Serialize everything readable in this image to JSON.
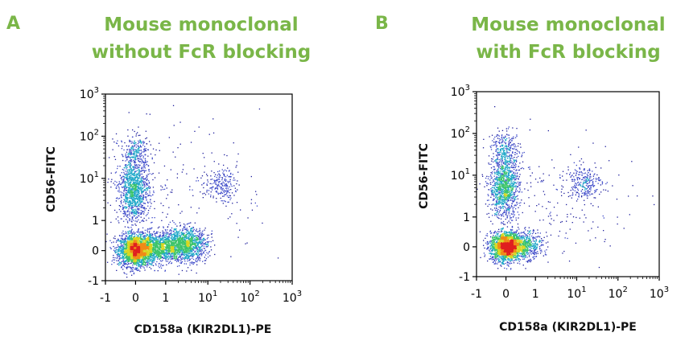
{
  "chart_data": [
    {
      "type": "scatter",
      "panel_letter": "A",
      "title_lines": [
        "Mouse monoclonal",
        "without FcR blocking"
      ],
      "xlabel": "CD158a (KIR2DL1)-PE",
      "ylabel": "CD56-FITC",
      "x_ticks": [
        "-1",
        "0",
        "1",
        "10",
        "10",
        "10"
      ],
      "x_tick_exps": [
        "",
        "",
        "",
        "1",
        "2",
        "3"
      ],
      "y_ticks": [
        "-1",
        "0",
        "1",
        "10",
        "10",
        "10"
      ],
      "y_tick_exps": [
        "",
        "",
        "",
        "1",
        "2",
        "3"
      ],
      "xlim": [
        -1,
        1000
      ],
      "ylim": [
        -1,
        1000
      ],
      "grid": false,
      "colormap": [
        "#1e1e9c",
        "#3a47c8",
        "#1fa8c8",
        "#3cc46a",
        "#d8d820",
        "#f08a18",
        "#e02020"
      ],
      "populations": [
        {
          "x": 0,
          "y": 0,
          "sx": 0.28,
          "sy": 0.26,
          "n": 2200
        },
        {
          "x": 0.7,
          "y": 0.1,
          "sx": 0.45,
          "sy": 0.25,
          "n": 1300
        },
        {
          "x": 3,
          "y": 0.2,
          "sx": 0.35,
          "sy": 0.26,
          "n": 1200
        },
        {
          "x": -0.05,
          "y": 5,
          "sx": 0.25,
          "sy": 0.5,
          "n": 1100
        },
        {
          "x": 0,
          "y": 40,
          "sx": 0.25,
          "sy": 0.3,
          "n": 260
        },
        {
          "x": 20,
          "y": 7,
          "sx": 0.25,
          "sy": 0.27,
          "n": 200
        },
        {
          "x": 2,
          "y": 4,
          "sx": 1.4,
          "sy": 1.2,
          "n": 220
        }
      ]
    },
    {
      "type": "scatter",
      "panel_letter": "B",
      "title_lines": [
        "Mouse monoclonal",
        "with FcR blocking"
      ],
      "xlabel": "CD158a (KIR2DL1)-PE",
      "ylabel": "CD56-FITC",
      "x_ticks": [
        "-1",
        "0",
        "1",
        "10",
        "10",
        "10"
      ],
      "x_tick_exps": [
        "",
        "",
        "",
        "1",
        "2",
        "3"
      ],
      "y_ticks": [
        "-1",
        "0",
        "1",
        "10",
        "10",
        "10"
      ],
      "y_tick_exps": [
        "",
        "",
        "",
        "1",
        "2",
        "3"
      ],
      "xlim": [
        -1,
        1000
      ],
      "ylim": [
        -1,
        1000
      ],
      "grid": false,
      "colormap": [
        "#1e1e9c",
        "#3a47c8",
        "#1fa8c8",
        "#3cc46a",
        "#d8d820",
        "#f08a18",
        "#e02020"
      ],
      "populations": [
        {
          "x": 0,
          "y": 0,
          "sx": 0.26,
          "sy": 0.24,
          "n": 2000
        },
        {
          "x": 0.6,
          "y": 0.05,
          "sx": 0.32,
          "sy": 0.22,
          "n": 600
        },
        {
          "x": -0.05,
          "y": 5,
          "sx": 0.25,
          "sy": 0.5,
          "n": 1100
        },
        {
          "x": 0,
          "y": 40,
          "sx": 0.25,
          "sy": 0.3,
          "n": 280
        },
        {
          "x": 15,
          "y": 7,
          "sx": 0.3,
          "sy": 0.27,
          "n": 240
        },
        {
          "x": 3,
          "y": 2,
          "sx": 1.3,
          "sy": 1.1,
          "n": 200
        }
      ]
    }
  ]
}
